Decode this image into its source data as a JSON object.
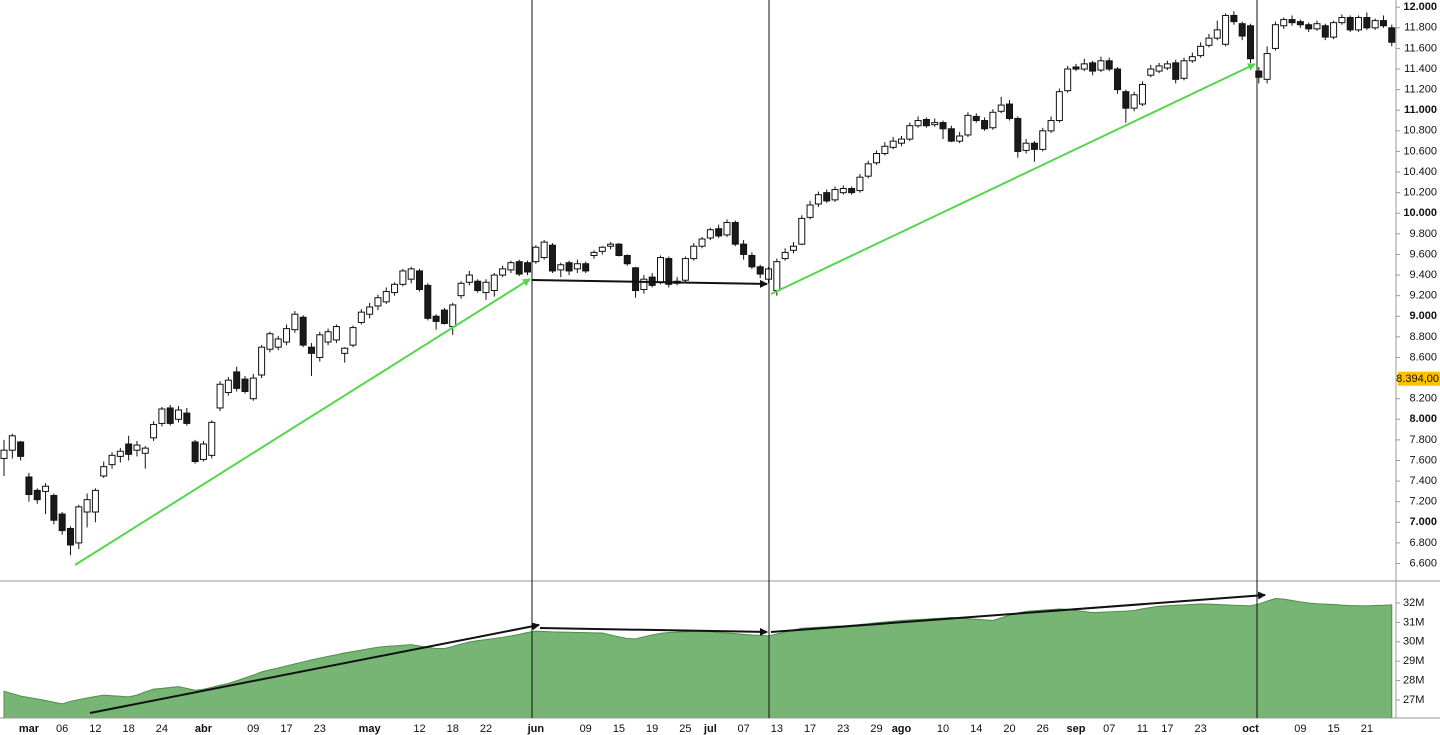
{
  "chart_data": {
    "type": "candlestick",
    "categories": [
      null,
      null,
      null,
      "mar",
      null,
      null,
      null,
      "06",
      null,
      null,
      null,
      "12",
      null,
      null,
      null,
      "18",
      null,
      null,
      null,
      "24",
      null,
      null,
      null,
      null,
      "abr",
      null,
      null,
      null,
      null,
      null,
      "09",
      null,
      null,
      null,
      "17",
      null,
      null,
      null,
      "23",
      null,
      null,
      null,
      null,
      null,
      "may",
      null,
      null,
      null,
      null,
      null,
      "12",
      null,
      null,
      null,
      "18",
      null,
      null,
      null,
      "22",
      null,
      null,
      null,
      null,
      null,
      "jun",
      null,
      null,
      null,
      null,
      null,
      "09",
      null,
      null,
      null,
      "15",
      null,
      null,
      null,
      "19",
      null,
      null,
      null,
      "25",
      null,
      null,
      "jul",
      null,
      null,
      null,
      "07",
      null,
      null,
      null,
      "13",
      null,
      null,
      null,
      "17",
      null,
      null,
      null,
      "23",
      null,
      null,
      null,
      "29",
      null,
      null,
      "ago",
      null,
      null,
      null,
      null,
      "10",
      null,
      null,
      null,
      "14",
      null,
      null,
      null,
      "20",
      null,
      null,
      null,
      "26",
      null,
      null,
      null,
      "sep",
      null,
      null,
      null,
      "07",
      null,
      null,
      null,
      "11",
      null,
      null,
      "17",
      null,
      null,
      null,
      "23",
      null,
      null,
      null,
      null,
      null,
      "oct",
      null,
      null,
      null,
      null,
      null,
      "09",
      null,
      null,
      null,
      "15",
      null,
      null,
      null,
      "21",
      null,
      null,
      null
    ],
    "candles": [
      [
        7620,
        7800,
        7450,
        7700
      ],
      [
        7700,
        7860,
        7620,
        7840
      ],
      [
        7780,
        7790,
        7600,
        7640
      ],
      [
        7440,
        7480,
        7200,
        7270
      ],
      [
        7310,
        7330,
        7180,
        7220
      ],
      [
        7300,
        7380,
        7080,
        7350
      ],
      [
        7260,
        7280,
        6980,
        7020
      ],
      [
        7080,
        7100,
        6880,
        6920
      ],
      [
        6940,
        6960,
        6680,
        6780
      ],
      [
        6800,
        7170,
        6740,
        7150
      ],
      [
        7100,
        7280,
        6950,
        7220
      ],
      [
        7100,
        7330,
        7000,
        7310
      ],
      [
        7450,
        7590,
        7430,
        7540
      ],
      [
        7560,
        7680,
        7520,
        7650
      ],
      [
        7640,
        7720,
        7580,
        7690
      ],
      [
        7760,
        7840,
        7600,
        7660
      ],
      [
        7700,
        7790,
        7640,
        7750
      ],
      [
        7670,
        7740,
        7520,
        7720
      ],
      [
        7820,
        7980,
        7790,
        7950
      ],
      [
        7960,
        8120,
        7930,
        8100
      ],
      [
        8110,
        8140,
        7940,
        7960
      ],
      [
        8000,
        8130,
        7970,
        8090
      ],
      [
        8060,
        8110,
        7940,
        7960
      ],
      [
        7780,
        7800,
        7570,
        7590
      ],
      [
        7610,
        7790,
        7590,
        7760
      ],
      [
        7650,
        7990,
        7620,
        7970
      ],
      [
        8110,
        8370,
        8080,
        8340
      ],
      [
        8260,
        8410,
        8230,
        8380
      ],
      [
        8460,
        8510,
        8270,
        8300
      ],
      [
        8390,
        8420,
        8250,
        8270
      ],
      [
        8200,
        8440,
        8180,
        8400
      ],
      [
        8430,
        8720,
        8400,
        8700
      ],
      [
        8680,
        8850,
        8650,
        8830
      ],
      [
        8700,
        8810,
        8670,
        8780
      ],
      [
        8750,
        8920,
        8720,
        8880
      ],
      [
        8870,
        9050,
        8840,
        9020
      ],
      [
        8990,
        9010,
        8700,
        8720
      ],
      [
        8700,
        8740,
        8420,
        8640
      ],
      [
        8600,
        8850,
        8560,
        8820
      ],
      [
        8750,
        8880,
        8720,
        8850
      ],
      [
        8770,
        8920,
        8740,
        8900
      ],
      [
        8640,
        8700,
        8550,
        8690
      ],
      [
        8720,
        8910,
        8700,
        8890
      ],
      [
        8940,
        9070,
        8920,
        9040
      ],
      [
        9020,
        9130,
        8980,
        9090
      ],
      [
        9100,
        9210,
        9060,
        9180
      ],
      [
        9140,
        9280,
        9120,
        9240
      ],
      [
        9230,
        9330,
        9200,
        9310
      ],
      [
        9310,
        9460,
        9290,
        9440
      ],
      [
        9360,
        9480,
        9320,
        9460
      ],
      [
        9440,
        9460,
        9240,
        9260
      ],
      [
        9300,
        9320,
        8960,
        8980
      ],
      [
        9000,
        9020,
        8870,
        8950
      ],
      [
        9060,
        9080,
        8920,
        8930
      ],
      [
        8900,
        9130,
        8820,
        9110
      ],
      [
        9200,
        9340,
        9170,
        9320
      ],
      [
        9330,
        9440,
        9300,
        9400
      ],
      [
        9340,
        9360,
        9230,
        9250
      ],
      [
        9230,
        9360,
        9160,
        9330
      ],
      [
        9250,
        9420,
        9190,
        9400
      ],
      [
        9400,
        9490,
        9380,
        9460
      ],
      [
        9450,
        9540,
        9420,
        9520
      ],
      [
        9530,
        9550,
        9390,
        9410
      ],
      [
        9520,
        9540,
        9400,
        9430
      ],
      [
        9530,
        9690,
        9510,
        9670
      ],
      [
        9570,
        9740,
        9550,
        9720
      ],
      [
        9690,
        9710,
        9420,
        9440
      ],
      [
        9450,
        9520,
        9380,
        9500
      ],
      [
        9520,
        9540,
        9400,
        9440
      ],
      [
        9460,
        9550,
        9420,
        9510
      ],
      [
        9510,
        9530,
        9420,
        9440
      ],
      [
        9590,
        9640,
        9560,
        9620
      ],
      [
        9630,
        9680,
        9600,
        9670
      ],
      [
        9680,
        9720,
        9650,
        9700
      ],
      [
        9700,
        9710,
        9580,
        9590
      ],
      [
        9590,
        9600,
        9490,
        9510
      ],
      [
        9470,
        9480,
        9180,
        9250
      ],
      [
        9260,
        9400,
        9220,
        9360
      ],
      [
        9380,
        9420,
        9280,
        9300
      ],
      [
        9330,
        9590,
        9310,
        9570
      ],
      [
        9560,
        9580,
        9280,
        9310
      ],
      [
        9320,
        9380,
        9300,
        9340
      ],
      [
        9350,
        9580,
        9330,
        9560
      ],
      [
        9560,
        9710,
        9540,
        9680
      ],
      [
        9680,
        9770,
        9660,
        9750
      ],
      [
        9760,
        9860,
        9740,
        9840
      ],
      [
        9850,
        9890,
        9760,
        9780
      ],
      [
        9790,
        9940,
        9770,
        9910
      ],
      [
        9910,
        9930,
        9680,
        9700
      ],
      [
        9700,
        9740,
        9550,
        9600
      ],
      [
        9590,
        9620,
        9460,
        9480
      ],
      [
        9480,
        9500,
        9370,
        9410
      ],
      [
        9360,
        9480,
        9320,
        9460
      ],
      [
        9250,
        9560,
        9200,
        9530
      ],
      [
        9560,
        9660,
        9540,
        9620
      ],
      [
        9640,
        9720,
        9610,
        9680
      ],
      [
        9700,
        9980,
        9690,
        9950
      ],
      [
        9960,
        10120,
        9940,
        10080
      ],
      [
        10090,
        10210,
        10060,
        10180
      ],
      [
        10200,
        10230,
        10100,
        10120
      ],
      [
        10130,
        10260,
        10110,
        10230
      ],
      [
        10200,
        10270,
        10180,
        10240
      ],
      [
        10240,
        10260,
        10180,
        10200
      ],
      [
        10220,
        10380,
        10200,
        10350
      ],
      [
        10360,
        10510,
        10340,
        10480
      ],
      [
        10490,
        10610,
        10470,
        10580
      ],
      [
        10580,
        10690,
        10560,
        10650
      ],
      [
        10640,
        10740,
        10620,
        10700
      ],
      [
        10680,
        10750,
        10650,
        10720
      ],
      [
        10720,
        10880,
        10700,
        10850
      ],
      [
        10850,
        10940,
        10830,
        10900
      ],
      [
        10910,
        10930,
        10830,
        10850
      ],
      [
        10860,
        10920,
        10840,
        10880
      ],
      [
        10880,
        10900,
        10720,
        10820
      ],
      [
        10820,
        10850,
        10690,
        10700
      ],
      [
        10700,
        10790,
        10680,
        10750
      ],
      [
        10760,
        10980,
        10740,
        10950
      ],
      [
        10940,
        10970,
        10880,
        10900
      ],
      [
        10900,
        10930,
        10800,
        10820
      ],
      [
        10830,
        11010,
        10810,
        10980
      ],
      [
        10990,
        11130,
        10970,
        11050
      ],
      [
        11060,
        11100,
        10900,
        10920
      ],
      [
        10920,
        10940,
        10540,
        10600
      ],
      [
        10610,
        10720,
        10580,
        10680
      ],
      [
        10680,
        10700,
        10500,
        10620
      ],
      [
        10620,
        10830,
        10600,
        10800
      ],
      [
        10800,
        10940,
        10780,
        10900
      ],
      [
        10900,
        11210,
        10880,
        11180
      ],
      [
        11190,
        11430,
        11170,
        11400
      ],
      [
        11420,
        11450,
        11380,
        11400
      ],
      [
        11400,
        11500,
        11380,
        11450
      ],
      [
        11460,
        11480,
        11340,
        11380
      ],
      [
        11390,
        11520,
        11370,
        11480
      ],
      [
        11480,
        11510,
        11380,
        11400
      ],
      [
        11400,
        11420,
        11160,
        11200
      ],
      [
        11180,
        11200,
        10880,
        11020
      ],
      [
        11020,
        11180,
        10990,
        11150
      ],
      [
        11060,
        11280,
        11040,
        11250
      ],
      [
        11340,
        11440,
        11320,
        11400
      ],
      [
        11380,
        11460,
        11360,
        11430
      ],
      [
        11410,
        11480,
        11390,
        11450
      ],
      [
        11460,
        11490,
        11260,
        11300
      ],
      [
        11310,
        11510,
        11290,
        11480
      ],
      [
        11480,
        11560,
        11460,
        11520
      ],
      [
        11530,
        11660,
        11510,
        11620
      ],
      [
        11630,
        11740,
        11610,
        11700
      ],
      [
        11700,
        11870,
        11680,
        11780
      ],
      [
        11640,
        11940,
        11620,
        11920
      ],
      [
        11920,
        11960,
        11830,
        11860
      ],
      [
        11840,
        11860,
        11680,
        11720
      ],
      [
        11820,
        11840,
        11460,
        11500
      ],
      [
        11380,
        11420,
        11260,
        11320
      ],
      [
        11300,
        11620,
        11260,
        11550
      ],
      [
        11600,
        11860,
        11580,
        11830
      ],
      [
        11820,
        11900,
        11790,
        11880
      ],
      [
        11880,
        11920,
        11820,
        11850
      ],
      [
        11860,
        11880,
        11800,
        11830
      ],
      [
        11830,
        11850,
        11760,
        11790
      ],
      [
        11790,
        11870,
        11770,
        11840
      ],
      [
        11820,
        11840,
        11680,
        11710
      ],
      [
        11710,
        11870,
        11690,
        11850
      ],
      [
        11850,
        11930,
        11830,
        11900
      ],
      [
        11900,
        11920,
        11760,
        11780
      ],
      [
        11780,
        11920,
        11760,
        11900
      ],
      [
        11900,
        11950,
        11780,
        11800
      ],
      [
        11800,
        11890,
        11780,
        11870
      ],
      [
        11870,
        11920,
        11800,
        11820
      ],
      [
        11800,
        11830,
        11620,
        11660
      ]
    ],
    "up_color": "#ffffff",
    "down_color": "#1a1a1a",
    "ylim": [
      6440,
      12070
    ],
    "yticks": [
      {
        "value": 6600,
        "label": "6.600"
      },
      {
        "value": 6800,
        "label": "6.800"
      },
      {
        "value": 7000,
        "label": "7.000"
      },
      {
        "value": 7200,
        "label": "7.200"
      },
      {
        "value": 7400,
        "label": "7.400"
      },
      {
        "value": 7600,
        "label": "7.600"
      },
      {
        "value": 7800,
        "label": "7.800"
      },
      {
        "value": 8000,
        "label": "8.000"
      },
      {
        "value": 8200,
        "label": "8.200"
      },
      {
        "value": 8600,
        "label": "8.600"
      },
      {
        "value": 8800,
        "label": "8.800"
      },
      {
        "value": 9000,
        "label": "9.000"
      },
      {
        "value": 9200,
        "label": "9.200"
      },
      {
        "value": 9400,
        "label": "9.400"
      },
      {
        "value": 9600,
        "label": "9.600"
      },
      {
        "value": 9800,
        "label": "9.800"
      },
      {
        "value": 10000,
        "label": "10.000"
      },
      {
        "value": 10200,
        "label": "10.200"
      },
      {
        "value": 10400,
        "label": "10.400"
      },
      {
        "value": 10600,
        "label": "10.600"
      },
      {
        "value": 10800,
        "label": "10.800"
      },
      {
        "value": 11000,
        "label": "11.000"
      },
      {
        "value": 11200,
        "label": "11.200"
      },
      {
        "value": 11400,
        "label": "11.400"
      },
      {
        "value": 11600,
        "label": "11.600"
      },
      {
        "value": 11800,
        "label": "11.800"
      },
      {
        "value": 12000,
        "label": "12.000"
      }
    ],
    "price_marker": {
      "value": 8394,
      "label": "8.394,00",
      "color": "#ffc000"
    },
    "lower": {
      "type": "area",
      "color": "#76b573",
      "line_color": "#4e8f4b",
      "ylim": [
        26.07,
        33.03
      ],
      "yticks": [
        {
          "value": 27,
          "label": "27M"
        },
        {
          "value": 28,
          "label": "28M"
        },
        {
          "value": 29,
          "label": "29M"
        },
        {
          "value": 30,
          "label": "30M"
        },
        {
          "value": 31,
          "label": "31M"
        },
        {
          "value": 32,
          "label": "32M"
        }
      ],
      "values": [
        27.45,
        27.33,
        27.2,
        27.13,
        27.05,
        26.97,
        26.88,
        26.8,
        26.93,
        27.02,
        27.1,
        27.18,
        27.25,
        27.22,
        27.19,
        27.16,
        27.25,
        27.42,
        27.56,
        27.6,
        27.64,
        27.69,
        27.6,
        27.5,
        27.55,
        27.65,
        27.76,
        27.85,
        27.99,
        28.14,
        28.28,
        28.45,
        28.55,
        28.65,
        28.76,
        28.86,
        28.96,
        29.07,
        29.16,
        29.25,
        29.33,
        29.43,
        29.5,
        29.57,
        29.65,
        29.72,
        29.76,
        29.79,
        29.82,
        29.85,
        29.78,
        29.72,
        29.65,
        29.65,
        29.76,
        29.88,
        29.99,
        30.06,
        30.11,
        30.17,
        30.23,
        30.3,
        30.38,
        30.48,
        30.55,
        30.53,
        30.51,
        30.5,
        30.49,
        30.48,
        30.47,
        30.46,
        30.45,
        30.35,
        30.25,
        30.17,
        30.15,
        30.25,
        30.35,
        30.43,
        30.48,
        30.5,
        30.52,
        30.54,
        30.55,
        30.52,
        30.48,
        30.45,
        30.42,
        30.38,
        30.35,
        30.33,
        30.3,
        30.4,
        30.5,
        30.6,
        30.7,
        30.72,
        30.75,
        30.77,
        30.8,
        30.82,
        30.85,
        30.89,
        30.93,
        30.98,
        31.02,
        31.06,
        31.1,
        31.12,
        31.15,
        31.17,
        31.2,
        31.22,
        31.25,
        31.21,
        31.19,
        31.16,
        31.13,
        31.1,
        31.23,
        31.37,
        31.48,
        31.57,
        31.6,
        31.63,
        31.66,
        31.69,
        31.67,
        31.61,
        31.56,
        31.5,
        31.52,
        31.54,
        31.56,
        31.58,
        31.61,
        31.7,
        31.77,
        31.83,
        31.86,
        31.88,
        31.9,
        31.93,
        31.95,
        31.94,
        31.92,
        31.9,
        31.88,
        31.87,
        31.85,
        31.95,
        32.1,
        32.23,
        32.2,
        32.13,
        32.06,
        32.0,
        31.96,
        31.94,
        31.92,
        31.89,
        31.87,
        31.86,
        31.85,
        31.87,
        31.88,
        31.9
      ]
    }
  }
}
